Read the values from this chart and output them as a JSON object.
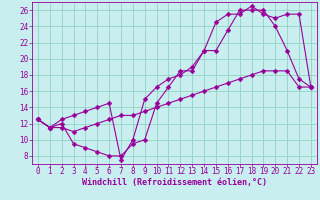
{
  "background_color": "#c8eef0",
  "grid_color": "#88ccbb",
  "line_color": "#990099",
  "xlabel": "Windchill (Refroidissement éolien,°C)",
  "xlim_min": -0.5,
  "xlim_max": 23.5,
  "ylim_min": 7,
  "ylim_max": 27,
  "xticks": [
    0,
    1,
    2,
    3,
    4,
    5,
    6,
    7,
    8,
    9,
    10,
    11,
    12,
    13,
    14,
    15,
    16,
    17,
    18,
    19,
    20,
    21,
    22,
    23
  ],
  "yticks": [
    8,
    10,
    12,
    14,
    16,
    18,
    20,
    22,
    24,
    26
  ],
  "line1_x": [
    0,
    1,
    2,
    3,
    4,
    5,
    6,
    7,
    8,
    9,
    10,
    11,
    12,
    13,
    14,
    15,
    16,
    17,
    18,
    19,
    20,
    21,
    22,
    23
  ],
  "line1_y": [
    12.5,
    11.5,
    12.0,
    9.5,
    9.0,
    8.5,
    8.0,
    8.0,
    9.5,
    10.0,
    14.5,
    16.5,
    18.5,
    18.5,
    21.0,
    21.0,
    23.5,
    26.0,
    26.0,
    26.0,
    24.0,
    21.0,
    17.5,
    16.5
  ],
  "line2_x": [
    0,
    1,
    2,
    3,
    4,
    5,
    6,
    7,
    8,
    9,
    10,
    11,
    12,
    13,
    14,
    15,
    16,
    17,
    18,
    19,
    20,
    21,
    22,
    23
  ],
  "line2_y": [
    12.5,
    11.5,
    12.5,
    13.0,
    13.5,
    14.0,
    14.5,
    7.5,
    10.0,
    15.0,
    16.5,
    17.5,
    18.0,
    19.0,
    21.0,
    24.5,
    25.5,
    25.5,
    26.5,
    25.5,
    25.0,
    25.5,
    25.5,
    16.5
  ],
  "line3_x": [
    0,
    1,
    2,
    3,
    4,
    5,
    6,
    7,
    8,
    9,
    10,
    11,
    12,
    13,
    14,
    15,
    16,
    17,
    18,
    19,
    20,
    21,
    22,
    23
  ],
  "line3_y": [
    12.5,
    11.5,
    11.5,
    11.0,
    11.5,
    12.0,
    12.5,
    13.0,
    13.0,
    13.5,
    14.0,
    14.5,
    15.0,
    15.5,
    16.0,
    16.5,
    17.0,
    17.5,
    18.0,
    18.5,
    18.5,
    18.5,
    16.5,
    16.5
  ],
  "tick_fontsize": 5.5,
  "xlabel_fontsize": 6.0,
  "marker_size": 2.5,
  "line_width": 0.8
}
